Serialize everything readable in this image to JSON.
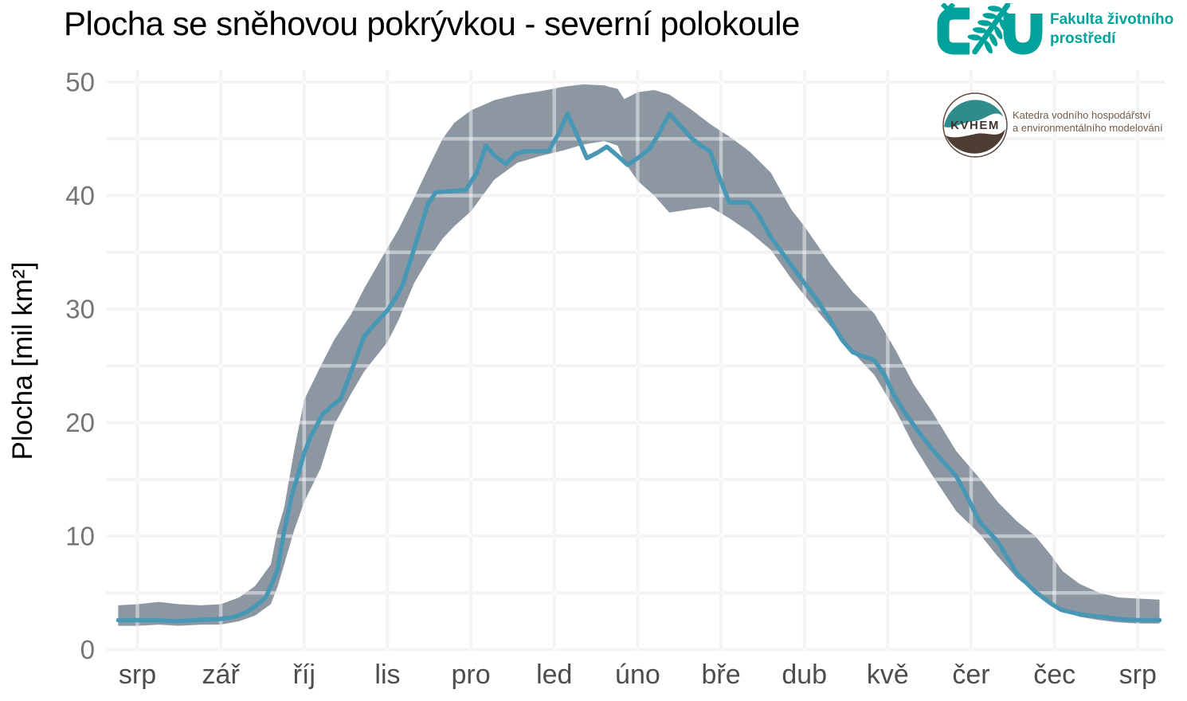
{
  "header": {
    "title": "Plocha se sněhovou pokrývkou - severní polokoule"
  },
  "logos": {
    "czu": {
      "acronym": "CZU",
      "faculty_line1": "Fakulta životního",
      "faculty_line2": "prostředí",
      "color": "#00A39B"
    },
    "kvhem": {
      "acronym": "KVHEM",
      "dept_line1": "Katedra vodního hospodářství",
      "dept_line2": "a environmentálního modelování",
      "teal": "#2E8C8C",
      "brown": "#4E3D33",
      "text_color": "#6F5B4B"
    }
  },
  "chart_data": {
    "type": "line",
    "title": "Plocha se sněhovou pokrývkou - severní polokoule",
    "xlabel": "",
    "ylabel": "Plocha [mil km²]",
    "x_unit": "month position, 0 = srp (Aug) through 12 = srp (Aug next year)",
    "x_tick_labels": [
      "srp",
      "zář",
      "říj",
      "lis",
      "pro",
      "led",
      "úno",
      "bře",
      "dub",
      "kvě",
      "čer",
      "čec",
      "srp"
    ],
    "y_ticks": [
      0,
      10,
      20,
      30,
      40,
      50
    ],
    "y_minor_step": 5,
    "ylim": [
      0,
      51
    ],
    "xlim": [
      -0.26,
      12.26
    ],
    "grid": "on",
    "legend_position": "none",
    "colors": {
      "line": "#4897B5",
      "band": "#8D97A2",
      "grid": "#EBEBEB",
      "y_tick_label": "#757575",
      "x_tick_label": "#4D4D4D",
      "title": "#000000"
    },
    "series": [
      {
        "name": "range_band_min_max",
        "type": "band",
        "points": [
          [
            -0.23,
            2.1,
            3.9
          ],
          [
            0,
            2.1,
            4.0
          ],
          [
            0.26,
            2.2,
            4.2
          ],
          [
            0.5,
            2.1,
            4.0
          ],
          [
            0.76,
            2.2,
            3.9
          ],
          [
            1,
            2.2,
            4.0
          ],
          [
            1.22,
            2.5,
            4.6
          ],
          [
            1.41,
            3.0,
            5.6
          ],
          [
            1.6,
            4.0,
            7.5
          ],
          [
            1.68,
            5.5,
            10.5
          ],
          [
            1.76,
            7.5,
            12.5
          ],
          [
            1.88,
            10.5,
            17.5
          ],
          [
            2,
            13.0,
            22.0
          ],
          [
            2.2,
            16.0,
            25.0
          ],
          [
            2.36,
            19.8,
            27.3
          ],
          [
            2.56,
            22.5,
            29.5
          ],
          [
            2.72,
            24.5,
            31.8
          ],
          [
            3,
            27.1,
            35.4
          ],
          [
            3.13,
            29.0,
            37.0
          ],
          [
            3.32,
            32.3,
            39.8
          ],
          [
            3.48,
            34.3,
            42.3
          ],
          [
            3.66,
            36.2,
            45.0
          ],
          [
            3.8,
            37.3,
            46.4
          ],
          [
            4,
            38.6,
            47.5
          ],
          [
            4.28,
            41.4,
            48.4
          ],
          [
            4.56,
            42.9,
            48.9
          ],
          [
            4.84,
            43.5,
            49.2
          ],
          [
            5.12,
            44.0,
            49.6
          ],
          [
            5.35,
            44.5,
            49.8
          ],
          [
            5.6,
            44.8,
            49.7
          ],
          [
            5.76,
            44.4,
            49.4
          ],
          [
            5.84,
            43.0,
            48.5
          ],
          [
            6,
            41.3,
            49.1
          ],
          [
            6.2,
            40.0,
            49.3
          ],
          [
            6.38,
            38.5,
            48.9
          ],
          [
            6.64,
            38.8,
            47.6
          ],
          [
            6.87,
            39.0,
            46.3
          ],
          [
            7.1,
            38.0,
            45.2
          ],
          [
            7.34,
            36.8,
            43.9
          ],
          [
            7.6,
            35.2,
            42.0
          ],
          [
            7.84,
            32.7,
            38.8
          ],
          [
            8,
            31.2,
            37.3
          ],
          [
            8.32,
            28.4,
            33.9
          ],
          [
            8.58,
            26.2,
            31.5
          ],
          [
            8.84,
            24.2,
            29.6
          ],
          [
            9.1,
            21.0,
            26.3
          ],
          [
            9.31,
            18.0,
            23.4
          ],
          [
            9.53,
            15.4,
            21.0
          ],
          [
            9.82,
            12.2,
            17.5
          ],
          [
            10.1,
            10.2,
            15.1
          ],
          [
            10.32,
            8.2,
            13.0
          ],
          [
            10.55,
            6.3,
            11.3
          ],
          [
            10.77,
            5.0,
            10.0
          ],
          [
            10.96,
            4.0,
            8.3
          ],
          [
            11.1,
            3.4,
            6.9
          ],
          [
            11.3,
            2.9,
            5.8
          ],
          [
            11.54,
            2.6,
            5.0
          ],
          [
            11.77,
            2.4,
            4.6
          ],
          [
            12,
            2.3,
            4.5
          ],
          [
            12.26,
            2.3,
            4.4
          ]
        ]
      },
      {
        "name": "snow_cover_extent",
        "type": "line",
        "points": [
          [
            -0.23,
            2.6
          ],
          [
            0,
            2.6
          ],
          [
            0.22,
            2.6
          ],
          [
            0.45,
            2.5
          ],
          [
            0.7,
            2.6
          ],
          [
            1,
            2.7
          ],
          [
            1.17,
            2.9
          ],
          [
            1.31,
            3.3
          ],
          [
            1.43,
            3.9
          ],
          [
            1.54,
            4.6
          ],
          [
            1.68,
            7.0
          ],
          [
            1.76,
            10.5
          ],
          [
            1.85,
            13.5
          ],
          [
            1.93,
            15.5
          ],
          [
            2,
            17.3
          ],
          [
            2.08,
            18.8
          ],
          [
            2.22,
            20.7
          ],
          [
            2.32,
            21.4
          ],
          [
            2.44,
            22.1
          ],
          [
            2.59,
            25.0
          ],
          [
            2.72,
            27.6
          ],
          [
            2.84,
            28.6
          ],
          [
            3,
            29.9
          ],
          [
            3.1,
            31.0
          ],
          [
            3.18,
            32.1
          ],
          [
            3.28,
            34.4
          ],
          [
            3.39,
            37.0
          ],
          [
            3.48,
            39.2
          ],
          [
            3.58,
            40.3
          ],
          [
            3.8,
            40.4
          ],
          [
            3.94,
            40.5
          ],
          [
            4.07,
            42.0
          ],
          [
            4.18,
            44.4
          ],
          [
            4.3,
            43.4
          ],
          [
            4.42,
            42.8
          ],
          [
            4.54,
            43.7
          ],
          [
            4.66,
            43.9
          ],
          [
            4.93,
            43.9
          ],
          [
            5.04,
            45.3
          ],
          [
            5.16,
            47.2
          ],
          [
            5.28,
            45.2
          ],
          [
            5.39,
            43.3
          ],
          [
            5.52,
            43.8
          ],
          [
            5.63,
            44.3
          ],
          [
            5.76,
            43.5
          ],
          [
            5.88,
            42.7
          ],
          [
            6,
            43.3
          ],
          [
            6.14,
            44.1
          ],
          [
            6.25,
            45.4
          ],
          [
            6.38,
            47.2
          ],
          [
            6.52,
            46.1
          ],
          [
            6.64,
            45.1
          ],
          [
            6.76,
            44.4
          ],
          [
            6.87,
            43.9
          ],
          [
            6.98,
            41.6
          ],
          [
            7.1,
            39.4
          ],
          [
            7.34,
            39.4
          ],
          [
            7.45,
            38.3
          ],
          [
            7.6,
            36.3
          ],
          [
            7.72,
            35.1
          ],
          [
            7.84,
            33.9
          ],
          [
            8,
            32.3
          ],
          [
            8.17,
            30.6
          ],
          [
            8.32,
            28.9
          ],
          [
            8.45,
            27.3
          ],
          [
            8.58,
            26.2
          ],
          [
            8.72,
            25.8
          ],
          [
            8.84,
            25.5
          ],
          [
            8.96,
            24.2
          ],
          [
            9.07,
            22.5
          ],
          [
            9.2,
            20.9
          ],
          [
            9.31,
            19.8
          ],
          [
            9.42,
            18.7
          ],
          [
            9.53,
            17.7
          ],
          [
            9.67,
            16.5
          ],
          [
            9.82,
            15.3
          ],
          [
            9.93,
            13.8
          ],
          [
            10.1,
            11.3
          ],
          [
            10.32,
            9.5
          ],
          [
            10.55,
            6.7
          ],
          [
            10.77,
            5.1
          ],
          [
            10.95,
            4.1
          ],
          [
            11.08,
            3.5
          ],
          [
            11.31,
            3.1
          ],
          [
            11.54,
            2.9
          ],
          [
            11.77,
            2.7
          ],
          [
            12,
            2.6
          ],
          [
            12.26,
            2.6
          ]
        ]
      }
    ]
  }
}
